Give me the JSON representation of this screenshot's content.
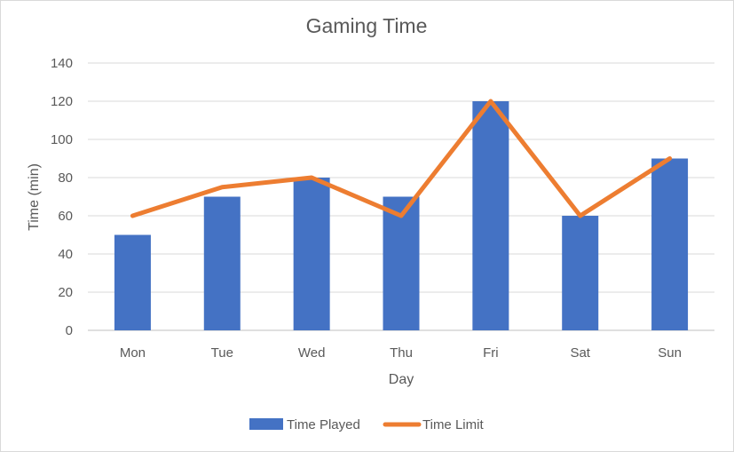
{
  "chart_data": {
    "type": "bar",
    "title": "Gaming Time",
    "xlabel": "Day",
    "ylabel": "Time (min)",
    "categories": [
      "Mon",
      "Tue",
      "Wed",
      "Thu",
      "Fri",
      "Sat",
      "Sun"
    ],
    "ylim": [
      0,
      140
    ],
    "yticks": [
      0,
      20,
      40,
      60,
      80,
      100,
      120,
      140
    ],
    "grid": true,
    "legend_position": "bottom",
    "series": [
      {
        "name": "Time Played",
        "type": "bar",
        "color": "#4472c4",
        "values": [
          50,
          70,
          80,
          70,
          120,
          60,
          90
        ]
      },
      {
        "name": "Time Limit",
        "type": "line",
        "color": "#ed7d31",
        "values": [
          60,
          75,
          80,
          60,
          120,
          60,
          90
        ]
      }
    ]
  }
}
